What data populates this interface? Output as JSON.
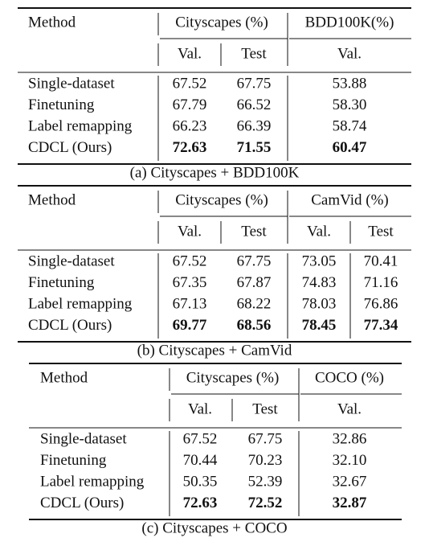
{
  "tables": [
    {
      "header": {
        "method": "Method",
        "groups": [
          "Cityscapes (%)",
          "BDD100K(%)"
        ],
        "subheaders": [
          "Val.",
          "Test",
          "Val."
        ]
      },
      "rows": [
        [
          "Single-dataset",
          "67.52",
          "67.75",
          "53.88"
        ],
        [
          "Finetuning",
          "67.79",
          "66.52",
          "58.30"
        ],
        [
          "Label remapping",
          "66.23",
          "66.39",
          "58.74"
        ],
        [
          "CDCL (Ours)",
          "72.63",
          "71.55",
          "60.47"
        ]
      ],
      "caption": "(a) Cityscapes + BDD100K"
    },
    {
      "header": {
        "method": "Method",
        "groups": [
          "Cityscapes (%)",
          "CamVid (%)"
        ],
        "subheaders": [
          "Val.",
          "Test",
          "Val.",
          "Test"
        ]
      },
      "rows": [
        [
          "Single-dataset",
          "67.52",
          "67.75",
          "73.05",
          "70.41"
        ],
        [
          "Finetuning",
          "67.35",
          "67.87",
          "74.83",
          "71.16"
        ],
        [
          "Label remapping",
          "67.13",
          "68.22",
          "78.03",
          "76.86"
        ],
        [
          "CDCL (Ours)",
          "69.77",
          "68.56",
          "78.45",
          "77.34"
        ]
      ],
      "caption": "(b) Cityscapes + CamVid"
    },
    {
      "header": {
        "method": "Method",
        "groups": [
          "Cityscapes (%)",
          "COCO (%)"
        ],
        "subheaders": [
          "Val.",
          "Test",
          "Val."
        ]
      },
      "rows": [
        [
          "Single-dataset",
          "67.52",
          "67.75",
          "32.86"
        ],
        [
          "Finetuning",
          "70.44",
          "70.23",
          "32.10"
        ],
        [
          "Label remapping",
          "50.35",
          "52.39",
          "32.67"
        ],
        [
          "CDCL (Ours)",
          "72.63",
          "72.52",
          "32.87"
        ]
      ],
      "caption": "(c) Cityscapes + COCO"
    }
  ]
}
